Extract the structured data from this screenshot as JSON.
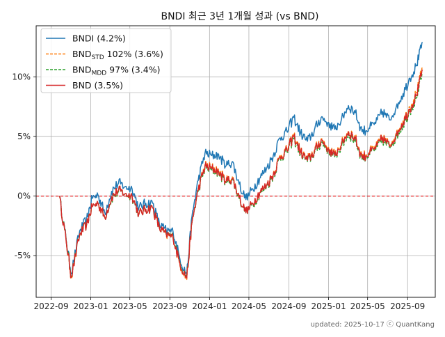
{
  "chart_data": {
    "type": "line",
    "title": "BNDI 최근 3년 1개월 성과 (vs BND)",
    "xlabel": "",
    "ylabel": "",
    "x_ticks": [
      "2022-09",
      "2023-01",
      "2023-05",
      "2023-09",
      "2024-01",
      "2024-05",
      "2024-09",
      "2025-01",
      "2025-05",
      "2025-09"
    ],
    "y_ticks": [
      "-5%",
      "0%",
      "5%",
      "10%"
    ],
    "y_tick_values": [
      -5,
      0,
      5,
      10
    ],
    "ylim": [
      -8.5,
      14.3
    ],
    "xlim": [
      "2022-07-17",
      "2025-11-25"
    ],
    "grid": true,
    "legend_position": "top-left",
    "reference_line": {
      "y": 0,
      "color": "#e41a1c",
      "style": "dashed"
    },
    "x": [
      "2022-09-26",
      "2022-10-17",
      "2022-11-02",
      "2022-11-28",
      "2022-12-19",
      "2023-01-05",
      "2023-01-23",
      "2023-02-13",
      "2023-03-06",
      "2023-03-27",
      "2023-04-17",
      "2023-05-08",
      "2023-05-29",
      "2023-06-19",
      "2023-07-10",
      "2023-07-31",
      "2023-08-21",
      "2023-09-11",
      "2023-10-02",
      "2023-10-23",
      "2023-11-08",
      "2023-11-27",
      "2023-12-18",
      "2024-01-08",
      "2024-01-29",
      "2024-02-19",
      "2024-03-11",
      "2024-04-01",
      "2024-04-22",
      "2024-05-13",
      "2024-06-03",
      "2024-06-24",
      "2024-07-15",
      "2024-08-05",
      "2024-08-26",
      "2024-09-16",
      "2024-10-07",
      "2024-10-28",
      "2024-11-18",
      "2024-12-09",
      "2024-12-30",
      "2025-01-20",
      "2025-02-10",
      "2025-03-03",
      "2025-03-24",
      "2025-04-14",
      "2025-05-05",
      "2025-05-26",
      "2025-06-16",
      "2025-07-07",
      "2025-07-28",
      "2025-08-18",
      "2025-09-08",
      "2025-09-29",
      "2025-10-17"
    ],
    "series": [
      {
        "name": "BNDI (4.2%)",
        "color": "#1f77b4",
        "style": "solid",
        "values": [
          0.0,
          -3.6,
          -6.5,
          -2.9,
          -2.0,
          -0.2,
          0.1,
          -1.4,
          0.4,
          1.1,
          0.8,
          0.6,
          -1.0,
          -0.6,
          -0.6,
          -2.4,
          -2.9,
          -3.0,
          -5.3,
          -6.6,
          -1.7,
          1.3,
          3.6,
          3.4,
          3.5,
          2.5,
          2.9,
          1.0,
          -0.3,
          0.6,
          1.5,
          2.3,
          3.4,
          4.9,
          5.4,
          6.6,
          5.3,
          4.6,
          5.5,
          6.6,
          6.2,
          5.6,
          6.5,
          7.6,
          7.0,
          5.4,
          5.7,
          6.1,
          7.1,
          6.4,
          7.5,
          8.6,
          9.9,
          11.0,
          12.9
        ]
      },
      {
        "name": "BNDSTD 102% (3.6%)",
        "color": "#ff7f0e",
        "style": "dashed",
        "values": [
          0.0,
          -3.7,
          -6.9,
          -3.2,
          -2.4,
          -0.9,
          -0.6,
          -1.8,
          -0.1,
          0.5,
          0.2,
          0.0,
          -1.5,
          -1.1,
          -1.0,
          -2.7,
          -3.3,
          -3.5,
          -5.8,
          -7.0,
          -2.2,
          0.5,
          2.6,
          2.4,
          2.2,
          1.3,
          1.6,
          -0.1,
          -1.4,
          -0.6,
          0.3,
          0.9,
          1.9,
          3.4,
          3.9,
          5.1,
          3.8,
          3.1,
          3.8,
          4.8,
          4.1,
          3.5,
          4.5,
          5.5,
          4.9,
          3.3,
          3.7,
          4.1,
          5.0,
          4.3,
          5.3,
          6.3,
          7.5,
          8.7,
          10.8
        ]
      },
      {
        "name": "BNDMDD 97% (3.4%)",
        "color": "#2ca02c",
        "style": "dashed",
        "values": [
          0.0,
          -3.6,
          -6.7,
          -3.2,
          -2.4,
          -0.9,
          -0.6,
          -1.8,
          -0.2,
          0.4,
          0.2,
          -0.1,
          -1.5,
          -1.1,
          -1.0,
          -2.7,
          -3.2,
          -3.4,
          -5.6,
          -6.8,
          -2.2,
          0.4,
          2.4,
          2.2,
          2.0,
          1.1,
          1.4,
          -0.2,
          -1.4,
          -0.7,
          0.2,
          0.8,
          1.7,
          3.2,
          3.7,
          4.8,
          3.6,
          2.9,
          3.6,
          4.5,
          3.9,
          3.3,
          4.2,
          5.2,
          4.6,
          3.1,
          3.5,
          3.9,
          4.7,
          4.1,
          5.0,
          6.0,
          7.1,
          8.3,
          10.3
        ]
      },
      {
        "name": "BND (3.5%)",
        "color": "#d62728",
        "style": "solid",
        "values": [
          0.0,
          -3.7,
          -6.8,
          -3.2,
          -2.4,
          -0.9,
          -0.6,
          -1.8,
          -0.1,
          0.5,
          0.2,
          0.0,
          -1.5,
          -1.1,
          -1.0,
          -2.7,
          -3.2,
          -3.5,
          -5.7,
          -6.9,
          -2.2,
          0.5,
          2.5,
          2.3,
          2.1,
          1.2,
          1.5,
          -0.1,
          -1.4,
          -0.6,
          0.3,
          0.9,
          1.8,
          3.3,
          3.8,
          5.0,
          3.7,
          3.0,
          3.7,
          4.7,
          4.0,
          3.4,
          4.4,
          5.4,
          4.8,
          3.2,
          3.6,
          4.0,
          4.9,
          4.2,
          5.2,
          6.2,
          7.3,
          8.5,
          10.6
        ]
      }
    ],
    "legend": [
      {
        "base": "BNDI (4.2%)",
        "sub": "",
        "rest": ""
      },
      {
        "base": "BND",
        "sub": "STD",
        "rest": " 102% (3.6%)"
      },
      {
        "base": "BND",
        "sub": "MDD",
        "rest": " 97% (3.4%)"
      },
      {
        "base": "BND (3.5%)",
        "sub": "",
        "rest": ""
      }
    ],
    "footer": "updated: 2025-10-17 ⓒ QuantKang"
  }
}
